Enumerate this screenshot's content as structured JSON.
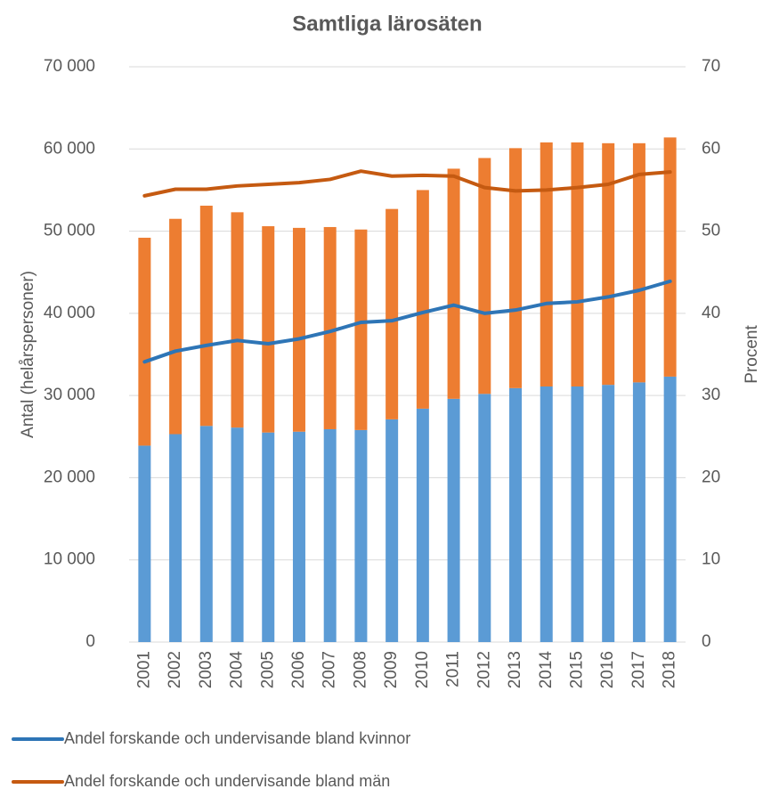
{
  "chart_data": {
    "type": "bar",
    "title": "Samtliga lärosäten",
    "ylabel": "Antal (helårspersoner)",
    "y2label": "Procent",
    "categories": [
      "2001",
      "2002",
      "2003",
      "2004",
      "2005",
      "2006",
      "2007",
      "2008",
      "2009",
      "2010",
      "2011",
      "2012",
      "2013",
      "2014",
      "2015",
      "2016",
      "2017",
      "2018"
    ],
    "stacked": true,
    "grid": true,
    "legend": "bottom",
    "ylim": [
      0,
      70000
    ],
    "yticks": [
      0,
      {
        "value": 10000,
        "label": "10 000"
      },
      {
        "value": 20000,
        "label": "20 000"
      },
      {
        "value": 30000,
        "label": "30 000"
      },
      {
        "value": 40000,
        "label": "40 000"
      },
      {
        "value": 50000,
        "label": "50 000"
      },
      {
        "value": 60000,
        "label": "60 000"
      },
      {
        "value": 70000,
        "label": "70 000"
      }
    ],
    "y2lim": [
      0,
      70
    ],
    "y2ticks": [
      0,
      10,
      20,
      30,
      40,
      50,
      60,
      70
    ],
    "series": [
      {
        "type": "bar",
        "color": "#5b9bd5",
        "values": [
          23900,
          25300,
          26300,
          26100,
          25500,
          25600,
          25900,
          25800,
          27100,
          28400,
          29600,
          30200,
          30900,
          31100,
          31100,
          31300,
          31600,
          32300
        ]
      },
      {
        "type": "bar",
        "color": "#ed7d31",
        "values": [
          25300,
          26200,
          26800,
          26200,
          25100,
          24800,
          24600,
          24400,
          25600,
          26600,
          28000,
          28700,
          29200,
          29700,
          29700,
          29400,
          29100,
          29100
        ]
      },
      {
        "type": "line",
        "axis": "y2",
        "name": "Andel forskande och undervisande bland kvinnor",
        "color": "#2e75b6",
        "values": [
          34.1,
          35.4,
          36.1,
          36.7,
          36.3,
          36.9,
          37.8,
          38.9,
          39.1,
          40.1,
          41.0,
          40.0,
          40.4,
          41.2,
          41.4,
          42.0,
          42.8,
          43.9
        ]
      },
      {
        "type": "line",
        "axis": "y2",
        "name": "Andel forskande och undervisande bland män",
        "color": "#c55a11",
        "values": [
          54.3,
          55.1,
          55.1,
          55.5,
          55.7,
          55.9,
          56.3,
          57.3,
          56.7,
          56.8,
          56.7,
          55.3,
          54.9,
          55.0,
          55.3,
          55.7,
          56.9,
          57.2
        ]
      }
    ]
  }
}
